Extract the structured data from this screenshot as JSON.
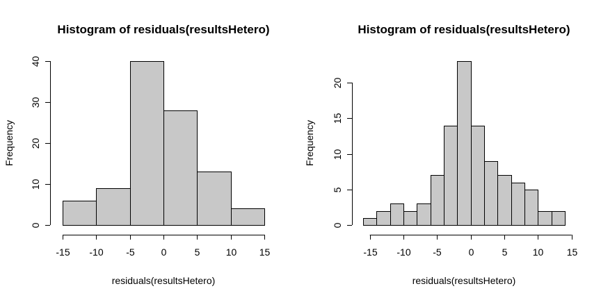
{
  "chart_data": [
    {
      "type": "bar",
      "title": "Histogram of residuals(resultsHetero)",
      "xlabel": "residuals(resultsHetero)",
      "ylabel": "Frequency",
      "bin_edges": [
        -15,
        -10,
        -5,
        0,
        5,
        10,
        15
      ],
      "values": [
        6,
        9,
        40,
        28,
        13,
        4
      ],
      "xlim": [
        -15,
        15
      ],
      "ylim": [
        0,
        40
      ],
      "xticks": [
        -15,
        -10,
        -5,
        0,
        5,
        10,
        15
      ],
      "yticks": [
        0,
        10,
        20,
        30,
        40
      ],
      "bar_color": "#c8c8c8"
    },
    {
      "type": "bar",
      "title": "Histogram of residuals(resultsHetero)",
      "xlabel": "residuals(resultsHetero)",
      "ylabel": "Frequency",
      "bin_edges": [
        -16,
        -14,
        -12,
        -10,
        -8,
        -6,
        -4,
        -2,
        0,
        2,
        4,
        6,
        8,
        10,
        12,
        14
      ],
      "values": [
        1,
        2,
        3,
        2,
        3,
        7,
        14,
        23,
        14,
        9,
        7,
        6,
        5,
        2,
        2
      ],
      "xlim": [
        -16,
        14
      ],
      "ylim": [
        0,
        20
      ],
      "xticks": [
        -15,
        -10,
        -5,
        0,
        5,
        10,
        15
      ],
      "yticks": [
        0,
        5,
        10,
        15,
        20
      ],
      "bar_color": "#c8c8c8"
    }
  ]
}
